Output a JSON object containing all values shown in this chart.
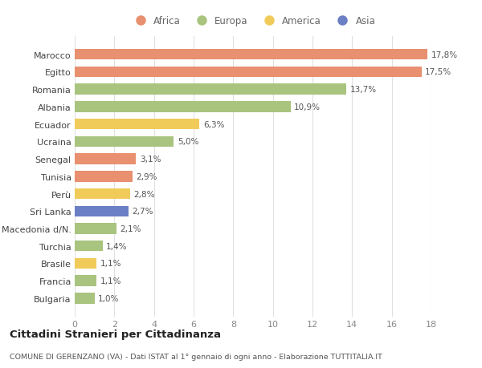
{
  "countries": [
    "Bulgaria",
    "Francia",
    "Brasile",
    "Turchia",
    "Macedonia d/N.",
    "Sri Lanka",
    "Perù",
    "Tunisia",
    "Senegal",
    "Ucraina",
    "Ecuador",
    "Albania",
    "Romania",
    "Egitto",
    "Marocco"
  ],
  "values": [
    1.0,
    1.1,
    1.1,
    1.4,
    2.1,
    2.7,
    2.8,
    2.9,
    3.1,
    5.0,
    6.3,
    10.9,
    13.7,
    17.5,
    17.8
  ],
  "labels": [
    "1,0%",
    "1,1%",
    "1,1%",
    "1,4%",
    "2,1%",
    "2,7%",
    "2,8%",
    "2,9%",
    "3,1%",
    "5,0%",
    "6,3%",
    "10,9%",
    "13,7%",
    "17,5%",
    "17,8%"
  ],
  "colors": [
    "#a8c47e",
    "#a8c47e",
    "#f0cb5a",
    "#a8c47e",
    "#a8c47e",
    "#6b7fc4",
    "#f0cb5a",
    "#e89070",
    "#e89070",
    "#a8c47e",
    "#f0cb5a",
    "#a8c47e",
    "#a8c47e",
    "#e89070",
    "#e89070"
  ],
  "legend_labels": [
    "Africa",
    "Europa",
    "America",
    "Asia"
  ],
  "legend_colors": [
    "#e89070",
    "#a8c47e",
    "#f0cb5a",
    "#6b7fc4"
  ],
  "xlim": [
    0,
    18
  ],
  "xticks": [
    0,
    2,
    4,
    6,
    8,
    10,
    12,
    14,
    16,
    18
  ],
  "title": "Cittadini Stranieri per Cittadinanza",
  "subtitle": "COMUNE DI GERENZANO (VA) - Dati ISTAT al 1° gennaio di ogni anno - Elaborazione TUTTITALIA.IT",
  "bg_color": "#ffffff",
  "grid_color": "#e0e0e0",
  "bar_label_color": "#555555",
  "ytick_color": "#444444",
  "xtick_color": "#888888"
}
